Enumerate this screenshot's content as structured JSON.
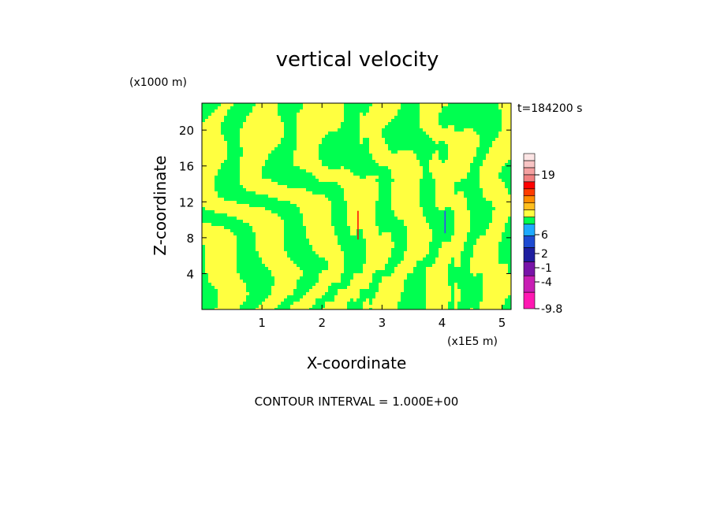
{
  "chart_data": {
    "type": "heatmap",
    "title": "vertical velocity",
    "time_label": "t=184200 s",
    "xlabel": "X-coordinate",
    "ylabel": "Z-coordinate",
    "x_unit": "(x1E5 m)",
    "y_unit": "(x1000 m)",
    "xlim": [
      0,
      5.15
    ],
    "ylim": [
      0,
      23
    ],
    "x_ticks": [
      "1",
      "2",
      "3",
      "4",
      "5"
    ],
    "y_ticks": [
      "4",
      "8",
      "12",
      "16",
      "20"
    ],
    "footer": "CONTOUR INTERVAL = 1.000E+00",
    "colorbar": {
      "labels": [
        "19",
        "6",
        "2",
        "-1",
        "-4",
        "-9.8"
      ],
      "levels": [
        {
          "color": "#ff19b2"
        },
        {
          "color": "#c81eb4"
        },
        {
          "color": "#7814a8"
        },
        {
          "color": "#1e1ea0"
        },
        {
          "color": "#1e4bd2"
        },
        {
          "color": "#1eaaff"
        },
        {
          "color": "#00ff50"
        },
        {
          "color": "#ffff40"
        },
        {
          "color": "#ffbe1e"
        },
        {
          "color": "#ff8c00"
        },
        {
          "color": "#ff3c00"
        },
        {
          "color": "#ff0000"
        },
        {
          "color": "#f08080"
        },
        {
          "color": "#f4a0a0"
        },
        {
          "color": "#f8c4c4"
        },
        {
          "color": "#fce4e4"
        }
      ]
    },
    "field_colors": {
      "positive": "#ffff40",
      "negative": "#00ff50"
    },
    "anomalies": [
      {
        "x": 2.6,
        "z_range": [
          7.8,
          11
        ],
        "color": "#ff0000"
      },
      {
        "x": 4.05,
        "z_range": [
          8.5,
          11
        ],
        "color": "#3c3cff"
      }
    ]
  }
}
